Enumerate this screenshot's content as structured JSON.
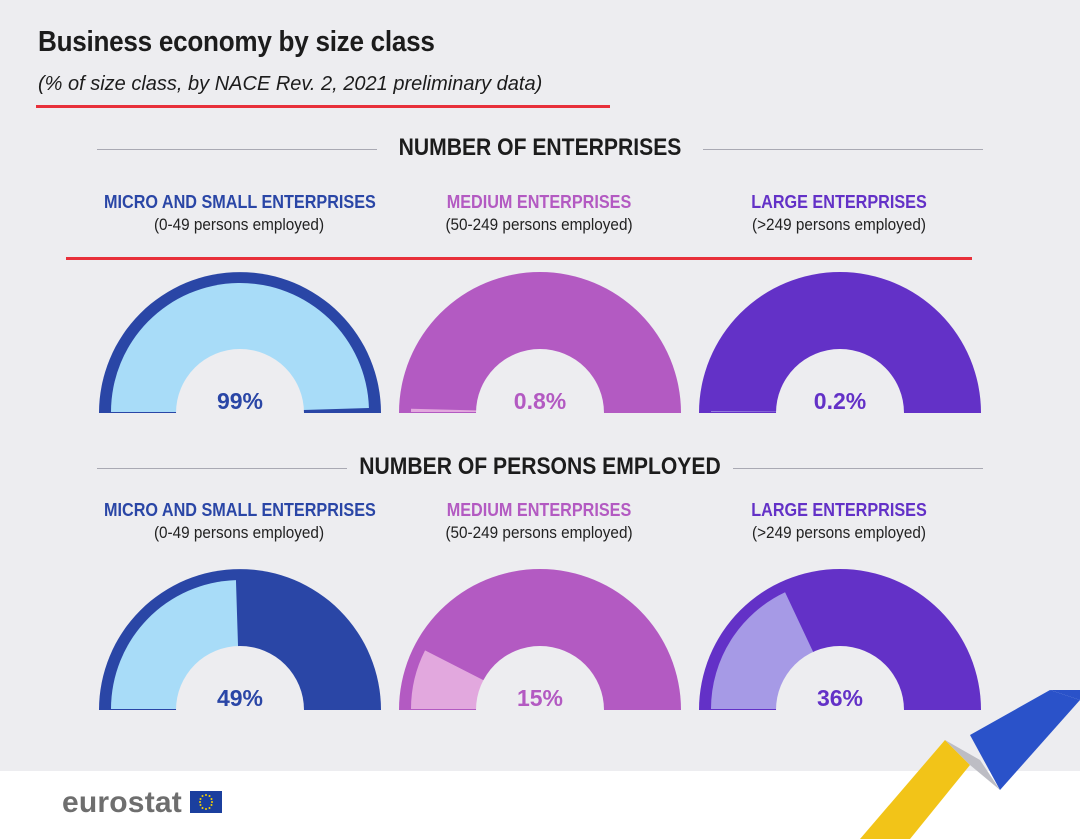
{
  "title": "Business economy by size class",
  "subtitle": "(% of size class, by NACE Rev. 2, 2021 preliminary data)",
  "sections": [
    {
      "heading": "NUMBER OF ENTERPRISES",
      "categories": [
        {
          "name": "MICRO AND SMALL ENTERPRISES",
          "sub": "(0-49 persons employed)",
          "value_label": "99%"
        },
        {
          "name": "MEDIUM ENTERPRISES",
          "sub": "(50-249 persons employed)",
          "value_label": "0.8%"
        },
        {
          "name": "LARGE ENTERPRISES",
          "sub": "(>249 persons employed)",
          "value_label": "0.2%"
        }
      ]
    },
    {
      "heading": "NUMBER OF PERSONS EMPLOYED",
      "categories": [
        {
          "name": "MICRO AND SMALL ENTERPRISES",
          "sub": "(0-49 persons employed)",
          "value_label": "49%"
        },
        {
          "name": "MEDIUM ENTERPRISES",
          "sub": "(50-249 persons employed)",
          "value_label": "15%"
        },
        {
          "name": "LARGE ENTERPRISES",
          "sub": "(>249 persons employed)",
          "value_label": "36%"
        }
      ]
    }
  ],
  "colors": {
    "micro_dark": "#2a46a6",
    "micro_light": "#a8dcf8",
    "medium_dark": "#b35ac2",
    "medium_light": "#e2a8de",
    "large_dark": "#6331c7",
    "large_light": "#a69ae6",
    "accent_red": "#e8303a"
  },
  "chart_data": [
    {
      "type": "gauge",
      "title": "NUMBER OF ENTERPRISES",
      "categories": [
        "MICRO AND SMALL ENTERPRISES",
        "MEDIUM ENTERPRISES",
        "LARGE ENTERPRISES"
      ],
      "values": [
        99,
        0.8,
        0.2
      ],
      "unit": "%"
    },
    {
      "type": "gauge",
      "title": "NUMBER OF PERSONS EMPLOYED",
      "categories": [
        "MICRO AND SMALL ENTERPRISES",
        "MEDIUM ENTERPRISES",
        "LARGE ENTERPRISES"
      ],
      "values": [
        49,
        15,
        36
      ],
      "unit": "%"
    }
  ],
  "logo": {
    "text": "eurostat"
  }
}
